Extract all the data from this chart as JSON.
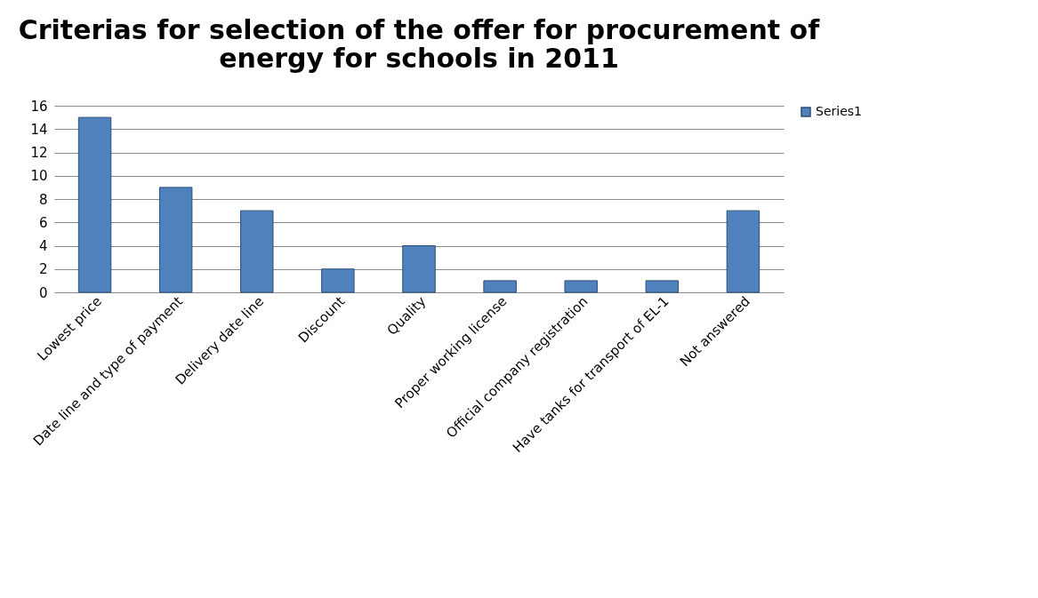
{
  "chart_data": {
    "type": "bar",
    "title": "Criterias for selection of the offer for procurement of energy for schools in 2011",
    "categories": [
      "Lowest price",
      "Date line and type of payment",
      "Delivery date line",
      "Discount",
      "Quality",
      "Proper working license",
      "Official company registration",
      "Have tanks for transport of EL-1",
      "Not answered"
    ],
    "series": [
      {
        "name": "Series1",
        "color": "#4f81bd",
        "values": [
          15,
          9,
          7,
          2,
          4,
          1,
          1,
          1,
          7
        ]
      }
    ],
    "ylim": [
      0,
      16
    ],
    "yticks": [
      0,
      2,
      4,
      6,
      8,
      10,
      12,
      14,
      16
    ],
    "grid": "y",
    "legend": "right"
  }
}
